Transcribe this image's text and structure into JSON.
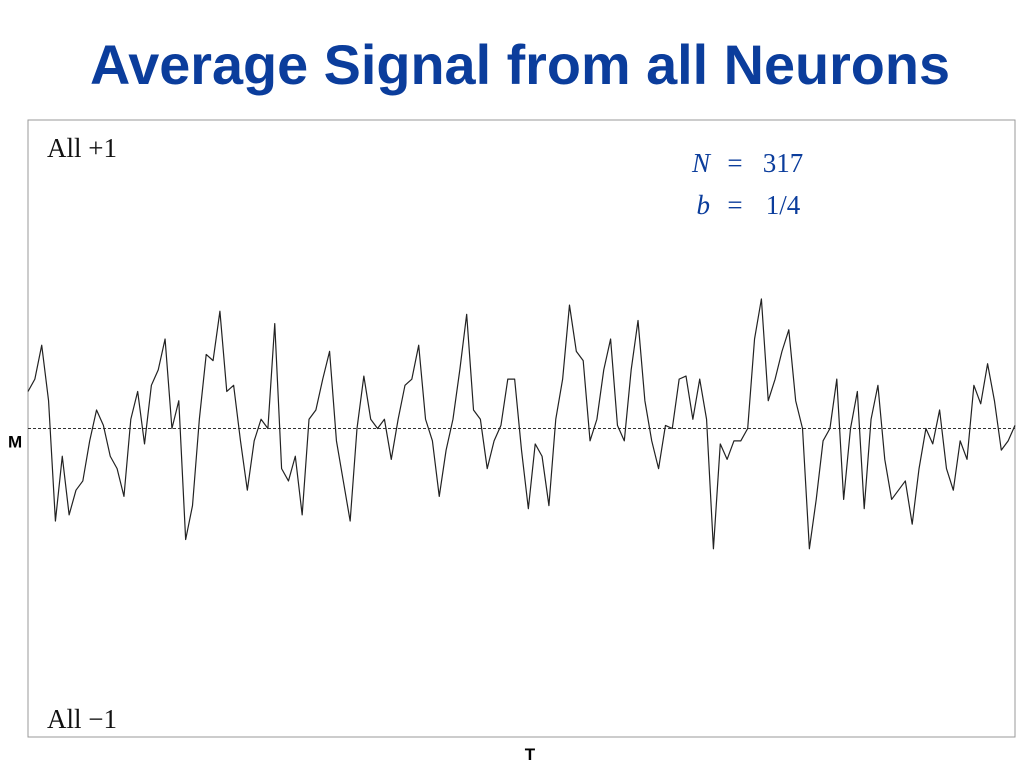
{
  "chart_data": {
    "type": "line",
    "title": "Average Signal from all Neurons",
    "top_label": "All +1",
    "bottom_label": "All −1",
    "x_label": "T",
    "params": [
      {
        "name": "N",
        "sep": "=",
        "value": 317
      },
      {
        "name": "b",
        "sep": "=",
        "value": "1/4"
      }
    ],
    "ylim": [
      -1,
      1
    ],
    "yticks": [
      {
        "value": 0,
        "label": "M"
      }
    ],
    "color": "#222222",
    "values": [
      0.12,
      0.16,
      0.27,
      0.09,
      -0.3,
      -0.09,
      -0.28,
      -0.2,
      -0.17,
      -0.04,
      0.06,
      0.01,
      -0.09,
      -0.13,
      -0.22,
      0.03,
      0.12,
      -0.05,
      0.14,
      0.19,
      0.29,
      0,
      0.09,
      -0.36,
      -0.25,
      0.03,
      0.24,
      0.22,
      0.38,
      0.12,
      0.14,
      -0.04,
      -0.2,
      -0.04,
      0.03,
      0,
      0.34,
      -0.13,
      -0.17,
      -0.09,
      -0.28,
      0.03,
      0.06,
      0.16,
      0.25,
      -0.04,
      -0.17,
      -0.3,
      0,
      0.17,
      0.03,
      0,
      0.03,
      -0.1,
      0.03,
      0.14,
      0.16,
      0.27,
      0.03,
      -0.04,
      -0.22,
      -0.07,
      0.03,
      0.19,
      0.37,
      0.06,
      0.03,
      -0.13,
      -0.04,
      0.01,
      0.16,
      0.16,
      -0.07,
      -0.26,
      -0.05,
      -0.09,
      -0.25,
      0.03,
      0.16,
      0.4,
      0.25,
      0.22,
      -0.04,
      0.03,
      0.19,
      0.29,
      0.01,
      -0.04,
      0.19,
      0.35,
      0.09,
      -0.04,
      -0.13,
      0.01,
      0,
      0.16,
      0.17,
      0.03,
      0.16,
      0.03,
      -0.39,
      -0.05,
      -0.1,
      -0.04,
      -0.04,
      0,
      0.29,
      0.42,
      0.09,
      0.16,
      0.25,
      0.32,
      0.09,
      0,
      -0.39,
      -0.23,
      -0.04,
      0,
      0.16,
      -0.23,
      0,
      0.12,
      -0.26,
      0.03,
      0.14,
      -0.1,
      -0.23,
      -0.2,
      -0.17,
      -0.31,
      -0.13,
      0,
      -0.05,
      0.06,
      -0.13,
      -0.2,
      -0.04,
      -0.1,
      0.14,
      0.08,
      0.21,
      0.09,
      -0.07,
      -0.04,
      0.01
    ]
  }
}
